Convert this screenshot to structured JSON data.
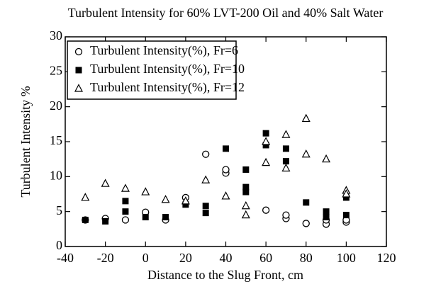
{
  "chart_data": {
    "type": "scatter",
    "title": "Turbulent Intensity for 60% LVT-200 Oil and 40% Salt Water",
    "x_label": "Distance to the Slug Front, cm",
    "y_label": "Turbulent Intensity %",
    "xlim": [
      -40,
      120
    ],
    "xticks": [
      -40,
      -20,
      0,
      20,
      40,
      60,
      80,
      100,
      120
    ],
    "ylim": [
      0,
      30
    ],
    "yticks": [
      0,
      5,
      10,
      15,
      20,
      25,
      30
    ],
    "legend": "upper left",
    "series": [
      {
        "name": "Turbulent Intensity(%), Fr=6",
        "marker": "circle",
        "color": "#000000",
        "x": [
          -30,
          -20,
          -10,
          0,
          10,
          20,
          30,
          40,
          40,
          60,
          70,
          70,
          80,
          90,
          90,
          100,
          100
        ],
        "values": [
          3.8,
          4,
          3.8,
          4.9,
          3.8,
          7,
          13.2,
          10.5,
          11,
          5.2,
          4,
          4.5,
          3.3,
          3.2,
          3.8,
          3.5,
          3.8
        ]
      },
      {
        "name": "Turbulent Intensity(%), Fr=10",
        "marker": "square",
        "color": "#000000",
        "x": [
          -30,
          -20,
          -10,
          -10,
          0,
          10,
          20,
          30,
          30,
          40,
          50,
          50,
          50,
          60,
          60,
          70,
          70,
          80,
          90,
          90,
          100,
          100
        ],
        "values": [
          3.8,
          3.6,
          6.5,
          5,
          4.2,
          4.2,
          6,
          5.8,
          4.8,
          14,
          11,
          8.5,
          7.8,
          16.2,
          14.5,
          14,
          12.2,
          6.3,
          5,
          4.2,
          7,
          4.5
        ]
      },
      {
        "name": "Turbulent Intensity(%), Fr=12",
        "marker": "triangle",
        "color": "#000000",
        "x": [
          -30,
          -20,
          -10,
          0,
          10,
          20,
          30,
          40,
          50,
          50,
          60,
          60,
          70,
          70,
          80,
          80,
          90,
          100,
          100
        ],
        "values": [
          7,
          9,
          8.3,
          7.8,
          6.7,
          6.5,
          9.5,
          7.2,
          5.8,
          4.5,
          15,
          12,
          16,
          11.2,
          18.3,
          13.2,
          12.5,
          8,
          7.5
        ]
      }
    ]
  }
}
